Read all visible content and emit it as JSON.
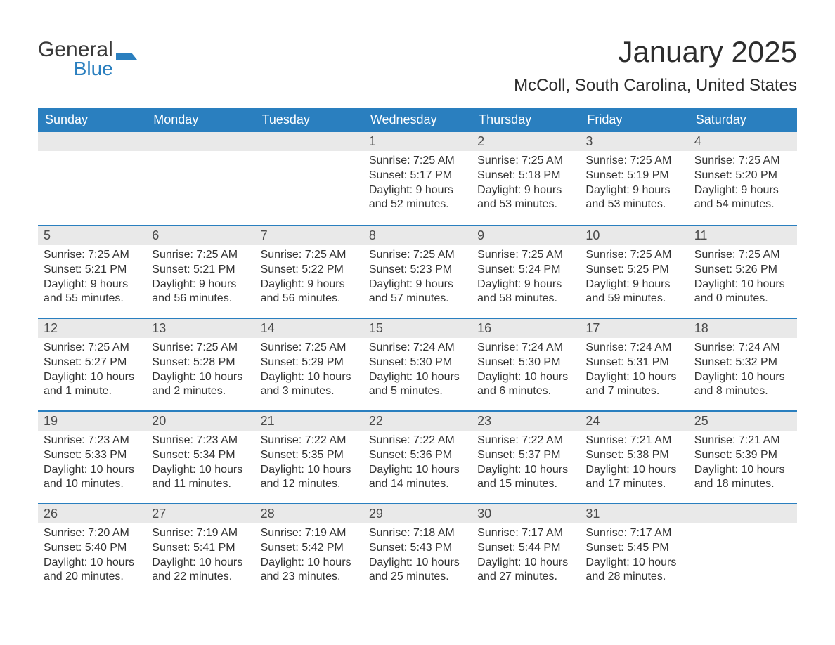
{
  "brand": {
    "name_gray": "General",
    "name_blue": "Blue"
  },
  "title": "January 2025",
  "location": "McColl, South Carolina, United States",
  "colors": {
    "header_bg": "#2a7fbf",
    "header_text": "#ffffff",
    "row_divider": "#2a7fbf",
    "daynum_bg": "#e9e9e9",
    "body_text": "#333333",
    "page_bg": "#ffffff",
    "logo_gray": "#3a3a3a",
    "logo_blue": "#2a7fbf"
  },
  "typography": {
    "title_fontsize": 42,
    "location_fontsize": 24,
    "weekday_fontsize": 18,
    "daynum_fontsize": 18,
    "body_fontsize": 16,
    "font_family": "Arial"
  },
  "calendar": {
    "type": "table",
    "columns": [
      "Sunday",
      "Monday",
      "Tuesday",
      "Wednesday",
      "Thursday",
      "Friday",
      "Saturday"
    ],
    "start_weekday_index": 3,
    "num_days": 31,
    "days": [
      {
        "n": 1,
        "sunrise": "Sunrise: 7:25 AM",
        "sunset": "Sunset: 5:17 PM",
        "daylight1": "Daylight: 9 hours",
        "daylight2": "and 52 minutes."
      },
      {
        "n": 2,
        "sunrise": "Sunrise: 7:25 AM",
        "sunset": "Sunset: 5:18 PM",
        "daylight1": "Daylight: 9 hours",
        "daylight2": "and 53 minutes."
      },
      {
        "n": 3,
        "sunrise": "Sunrise: 7:25 AM",
        "sunset": "Sunset: 5:19 PM",
        "daylight1": "Daylight: 9 hours",
        "daylight2": "and 53 minutes."
      },
      {
        "n": 4,
        "sunrise": "Sunrise: 7:25 AM",
        "sunset": "Sunset: 5:20 PM",
        "daylight1": "Daylight: 9 hours",
        "daylight2": "and 54 minutes."
      },
      {
        "n": 5,
        "sunrise": "Sunrise: 7:25 AM",
        "sunset": "Sunset: 5:21 PM",
        "daylight1": "Daylight: 9 hours",
        "daylight2": "and 55 minutes."
      },
      {
        "n": 6,
        "sunrise": "Sunrise: 7:25 AM",
        "sunset": "Sunset: 5:21 PM",
        "daylight1": "Daylight: 9 hours",
        "daylight2": "and 56 minutes."
      },
      {
        "n": 7,
        "sunrise": "Sunrise: 7:25 AM",
        "sunset": "Sunset: 5:22 PM",
        "daylight1": "Daylight: 9 hours",
        "daylight2": "and 56 minutes."
      },
      {
        "n": 8,
        "sunrise": "Sunrise: 7:25 AM",
        "sunset": "Sunset: 5:23 PM",
        "daylight1": "Daylight: 9 hours",
        "daylight2": "and 57 minutes."
      },
      {
        "n": 9,
        "sunrise": "Sunrise: 7:25 AM",
        "sunset": "Sunset: 5:24 PM",
        "daylight1": "Daylight: 9 hours",
        "daylight2": "and 58 minutes."
      },
      {
        "n": 10,
        "sunrise": "Sunrise: 7:25 AM",
        "sunset": "Sunset: 5:25 PM",
        "daylight1": "Daylight: 9 hours",
        "daylight2": "and 59 minutes."
      },
      {
        "n": 11,
        "sunrise": "Sunrise: 7:25 AM",
        "sunset": "Sunset: 5:26 PM",
        "daylight1": "Daylight: 10 hours",
        "daylight2": "and 0 minutes."
      },
      {
        "n": 12,
        "sunrise": "Sunrise: 7:25 AM",
        "sunset": "Sunset: 5:27 PM",
        "daylight1": "Daylight: 10 hours",
        "daylight2": "and 1 minute."
      },
      {
        "n": 13,
        "sunrise": "Sunrise: 7:25 AM",
        "sunset": "Sunset: 5:28 PM",
        "daylight1": "Daylight: 10 hours",
        "daylight2": "and 2 minutes."
      },
      {
        "n": 14,
        "sunrise": "Sunrise: 7:25 AM",
        "sunset": "Sunset: 5:29 PM",
        "daylight1": "Daylight: 10 hours",
        "daylight2": "and 3 minutes."
      },
      {
        "n": 15,
        "sunrise": "Sunrise: 7:24 AM",
        "sunset": "Sunset: 5:30 PM",
        "daylight1": "Daylight: 10 hours",
        "daylight2": "and 5 minutes."
      },
      {
        "n": 16,
        "sunrise": "Sunrise: 7:24 AM",
        "sunset": "Sunset: 5:30 PM",
        "daylight1": "Daylight: 10 hours",
        "daylight2": "and 6 minutes."
      },
      {
        "n": 17,
        "sunrise": "Sunrise: 7:24 AM",
        "sunset": "Sunset: 5:31 PM",
        "daylight1": "Daylight: 10 hours",
        "daylight2": "and 7 minutes."
      },
      {
        "n": 18,
        "sunrise": "Sunrise: 7:24 AM",
        "sunset": "Sunset: 5:32 PM",
        "daylight1": "Daylight: 10 hours",
        "daylight2": "and 8 minutes."
      },
      {
        "n": 19,
        "sunrise": "Sunrise: 7:23 AM",
        "sunset": "Sunset: 5:33 PM",
        "daylight1": "Daylight: 10 hours",
        "daylight2": "and 10 minutes."
      },
      {
        "n": 20,
        "sunrise": "Sunrise: 7:23 AM",
        "sunset": "Sunset: 5:34 PM",
        "daylight1": "Daylight: 10 hours",
        "daylight2": "and 11 minutes."
      },
      {
        "n": 21,
        "sunrise": "Sunrise: 7:22 AM",
        "sunset": "Sunset: 5:35 PM",
        "daylight1": "Daylight: 10 hours",
        "daylight2": "and 12 minutes."
      },
      {
        "n": 22,
        "sunrise": "Sunrise: 7:22 AM",
        "sunset": "Sunset: 5:36 PM",
        "daylight1": "Daylight: 10 hours",
        "daylight2": "and 14 minutes."
      },
      {
        "n": 23,
        "sunrise": "Sunrise: 7:22 AM",
        "sunset": "Sunset: 5:37 PM",
        "daylight1": "Daylight: 10 hours",
        "daylight2": "and 15 minutes."
      },
      {
        "n": 24,
        "sunrise": "Sunrise: 7:21 AM",
        "sunset": "Sunset: 5:38 PM",
        "daylight1": "Daylight: 10 hours",
        "daylight2": "and 17 minutes."
      },
      {
        "n": 25,
        "sunrise": "Sunrise: 7:21 AM",
        "sunset": "Sunset: 5:39 PM",
        "daylight1": "Daylight: 10 hours",
        "daylight2": "and 18 minutes."
      },
      {
        "n": 26,
        "sunrise": "Sunrise: 7:20 AM",
        "sunset": "Sunset: 5:40 PM",
        "daylight1": "Daylight: 10 hours",
        "daylight2": "and 20 minutes."
      },
      {
        "n": 27,
        "sunrise": "Sunrise: 7:19 AM",
        "sunset": "Sunset: 5:41 PM",
        "daylight1": "Daylight: 10 hours",
        "daylight2": "and 22 minutes."
      },
      {
        "n": 28,
        "sunrise": "Sunrise: 7:19 AM",
        "sunset": "Sunset: 5:42 PM",
        "daylight1": "Daylight: 10 hours",
        "daylight2": "and 23 minutes."
      },
      {
        "n": 29,
        "sunrise": "Sunrise: 7:18 AM",
        "sunset": "Sunset: 5:43 PM",
        "daylight1": "Daylight: 10 hours",
        "daylight2": "and 25 minutes."
      },
      {
        "n": 30,
        "sunrise": "Sunrise: 7:17 AM",
        "sunset": "Sunset: 5:44 PM",
        "daylight1": "Daylight: 10 hours",
        "daylight2": "and 27 minutes."
      },
      {
        "n": 31,
        "sunrise": "Sunrise: 7:17 AM",
        "sunset": "Sunset: 5:45 PM",
        "daylight1": "Daylight: 10 hours",
        "daylight2": "and 28 minutes."
      }
    ]
  }
}
